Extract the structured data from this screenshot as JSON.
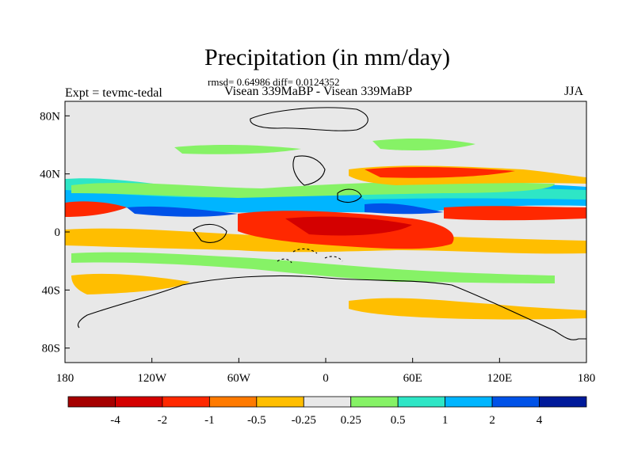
{
  "title": "Precipitation (in mm/day)",
  "stats_line": "rmsd= 0.64986 diff= 0.0124352",
  "subtitle": "Visean 339MaBP - Visean 339MaBP",
  "experiment": "Expt = tevmc-tedal",
  "season": "JJA",
  "chart_data": {
    "type": "heatmap",
    "title": "Precipitation (in mm/day)",
    "units": "mm/day",
    "x_axis": {
      "range": [
        -180,
        180
      ],
      "ticks": [
        -180,
        -120,
        -60,
        0,
        60,
        120,
        180
      ],
      "tick_labels": [
        "180",
        "120W",
        "60W",
        "0",
        "60E",
        "120E",
        "180"
      ]
    },
    "y_axis": {
      "range": [
        -90,
        90
      ],
      "ticks": [
        80,
        40,
        0,
        -40,
        -80
      ],
      "tick_labels": [
        "80N",
        "40N",
        "0",
        "40S",
        "80S"
      ]
    },
    "colorbar": {
      "colors": [
        "#a50000",
        "#d40000",
        "#ff2800",
        "#ff7a00",
        "#ffbe00",
        "#e8e8e8",
        "#86f266",
        "#2ee6c6",
        "#00b5ff",
        "#0052e8",
        "#001a9a"
      ],
      "boundary_labels": [
        "-4",
        "-2",
        "-1",
        "-0.5",
        "-0.25",
        "0.25",
        "0.5",
        "1",
        "2",
        "4"
      ]
    },
    "background_color": "#e8e8e8"
  }
}
